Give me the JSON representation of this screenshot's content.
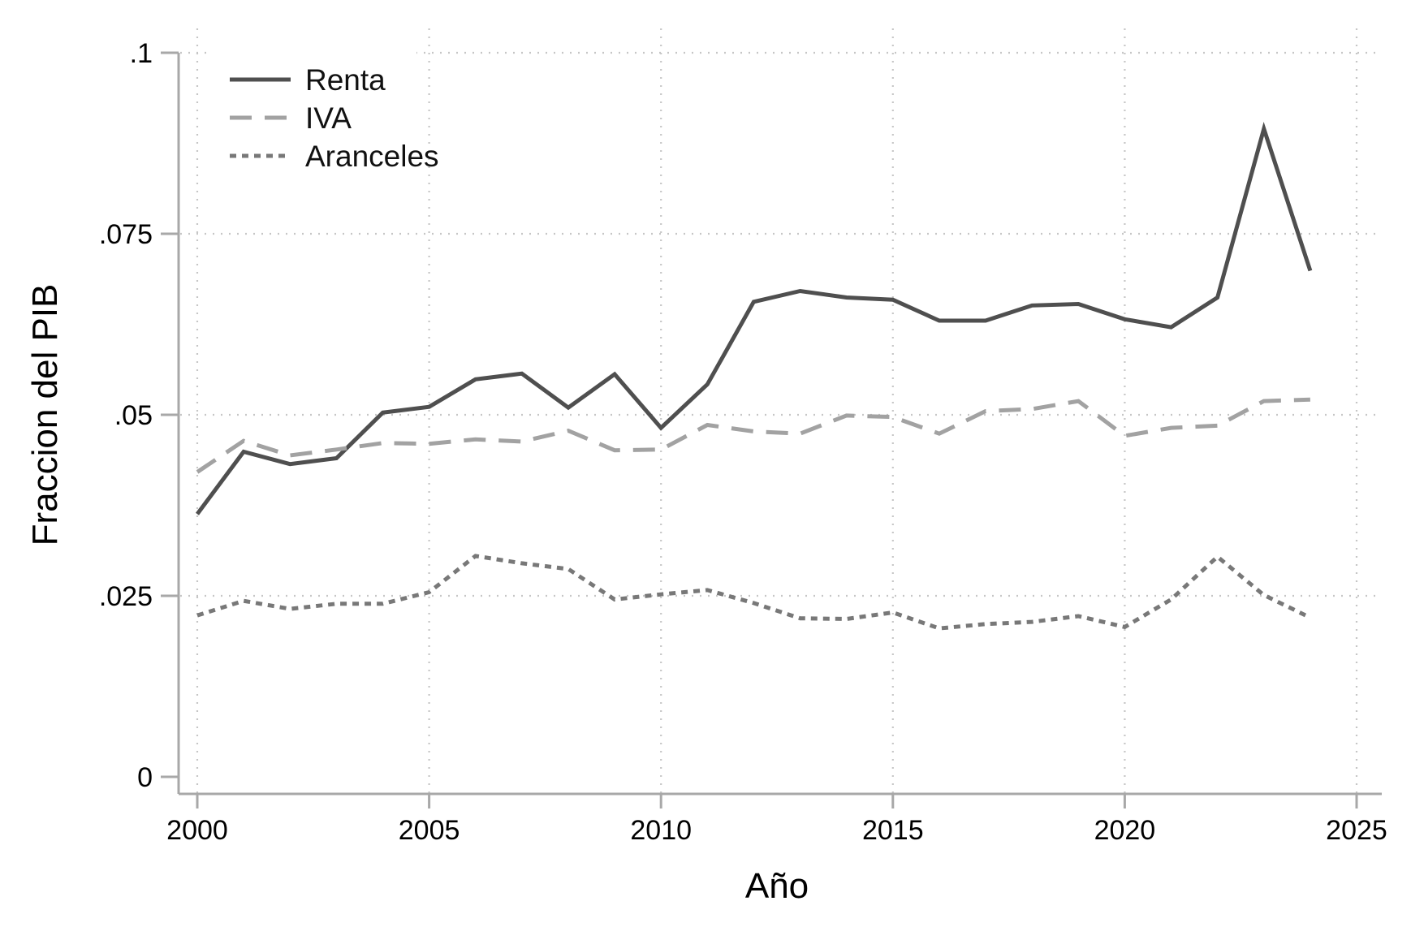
{
  "figure": {
    "background": "#ffffff"
  },
  "chart_data": {
    "type": "line",
    "title": "",
    "xlabel": "Año",
    "ylabel": "Fraccion del PIB",
    "xlim": [
      2000,
      2025
    ],
    "ylim": [
      0,
      0.1
    ],
    "x_ticks": [
      2000,
      2005,
      2010,
      2015,
      2020,
      2025
    ],
    "x_tick_labels": [
      "2000",
      "2005",
      "2010",
      "2015",
      "2020",
      "2025"
    ],
    "y_ticks": [
      0,
      0.025,
      0.05,
      0.075,
      0.1
    ],
    "y_tick_labels": [
      "0",
      ".025",
      ".05",
      ".075",
      ".1"
    ],
    "grid": true,
    "legend_position": "top-left",
    "x": [
      2000,
      2001,
      2002,
      2003,
      2004,
      2005,
      2006,
      2007,
      2008,
      2009,
      2010,
      2011,
      2012,
      2013,
      2014,
      2015,
      2016,
      2017,
      2018,
      2019,
      2020,
      2021,
      2022,
      2023,
      2024
    ],
    "series": [
      {
        "name": "Renta",
        "style": "solid",
        "color": "#4f4f4f",
        "values": [
          0.0363,
          0.0449,
          0.0432,
          0.044,
          0.0503,
          0.0511,
          0.0549,
          0.0557,
          0.051,
          0.0556,
          0.0482,
          0.0542,
          0.0656,
          0.0671,
          0.0662,
          0.0659,
          0.063,
          0.063,
          0.0651,
          0.0653,
          0.0632,
          0.0621,
          0.0662,
          0.0895,
          0.0699
        ]
      },
      {
        "name": "IVA",
        "style": "dashed",
        "color": "#a2a2a2",
        "values": [
          0.0421,
          0.0464,
          0.0444,
          0.0452,
          0.0461,
          0.046,
          0.0466,
          0.0463,
          0.0478,
          0.0451,
          0.0452,
          0.0486,
          0.0477,
          0.0474,
          0.0499,
          0.0497,
          0.0474,
          0.0505,
          0.0508,
          0.0519,
          0.0471,
          0.0482,
          0.0485,
          0.0519,
          0.0521
        ]
      },
      {
        "name": "Aranceles",
        "style": "dotted",
        "color": "#787878",
        "values": [
          0.0223,
          0.0243,
          0.0232,
          0.0239,
          0.0239,
          0.0255,
          0.0305,
          0.0295,
          0.0287,
          0.0245,
          0.0252,
          0.0258,
          0.024,
          0.0219,
          0.0218,
          0.0227,
          0.0205,
          0.0211,
          0.0214,
          0.0222,
          0.0207,
          0.0245,
          0.0304,
          0.0251,
          0.022
        ]
      }
    ],
    "style_colors": {
      "axis": "#a8a8a8",
      "grid": "#c6c6c6",
      "tick_text": "#000000"
    }
  }
}
